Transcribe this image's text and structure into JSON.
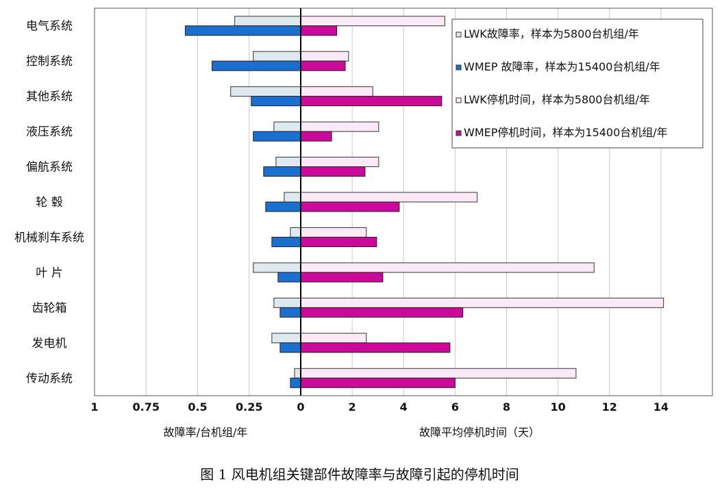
{
  "chart_data": {
    "type": "bar",
    "orientation": "horizontal",
    "caption": "图 1  风电机组关键部件故障率与故障引起的停机时间",
    "categories": [
      "电气系统",
      "控制系统",
      "其他系统",
      "液压系统",
      "偏航系统",
      "轮 毂",
      "机械刹车系统",
      "叶 片",
      "齿轮箱",
      "发电机",
      "传动系统"
    ],
    "left_panel": {
      "xlabel": "故障率/台机组/年",
      "xlim": [
        1,
        0
      ],
      "ticks": [
        "1",
        "0.75",
        "0.5",
        "0.25",
        "0"
      ],
      "series": [
        {
          "name": "LWK故障率，样本为5800台机组/年",
          "color": "#dde8ef",
          "values": [
            0.32,
            0.23,
            0.34,
            0.13,
            0.12,
            0.08,
            0.05,
            0.23,
            0.13,
            0.14,
            0.03
          ]
        },
        {
          "name": "WMEP 故障率，样本为15400台机组/年",
          "color": "#1b6fcf",
          "values": [
            0.56,
            0.43,
            0.24,
            0.23,
            0.18,
            0.17,
            0.14,
            0.11,
            0.1,
            0.1,
            0.05
          ]
        }
      ]
    },
    "right_panel": {
      "xlabel": "故障平均停机时间（天）",
      "xlim": [
        0,
        16
      ],
      "ticks": [
        "2",
        "4",
        "6",
        "8",
        "10",
        "12",
        "14"
      ],
      "series": [
        {
          "name": "LWK停机时间，样本为5800台机组/年",
          "color": "#fbeaf6",
          "values": [
            5.6,
            1.86,
            2.8,
            3.03,
            3.03,
            6.86,
            2.55,
            11.4,
            14.1,
            2.55,
            10.7
          ]
        },
        {
          "name": "WMEP停机时间，样本为15400台机组/年",
          "color": "#cc0a99",
          "values": [
            1.4,
            1.73,
            5.48,
            1.2,
            2.5,
            3.83,
            2.95,
            3.19,
            6.3,
            5.8,
            6.0
          ]
        }
      ]
    },
    "grid": true,
    "legend": "top-right"
  }
}
